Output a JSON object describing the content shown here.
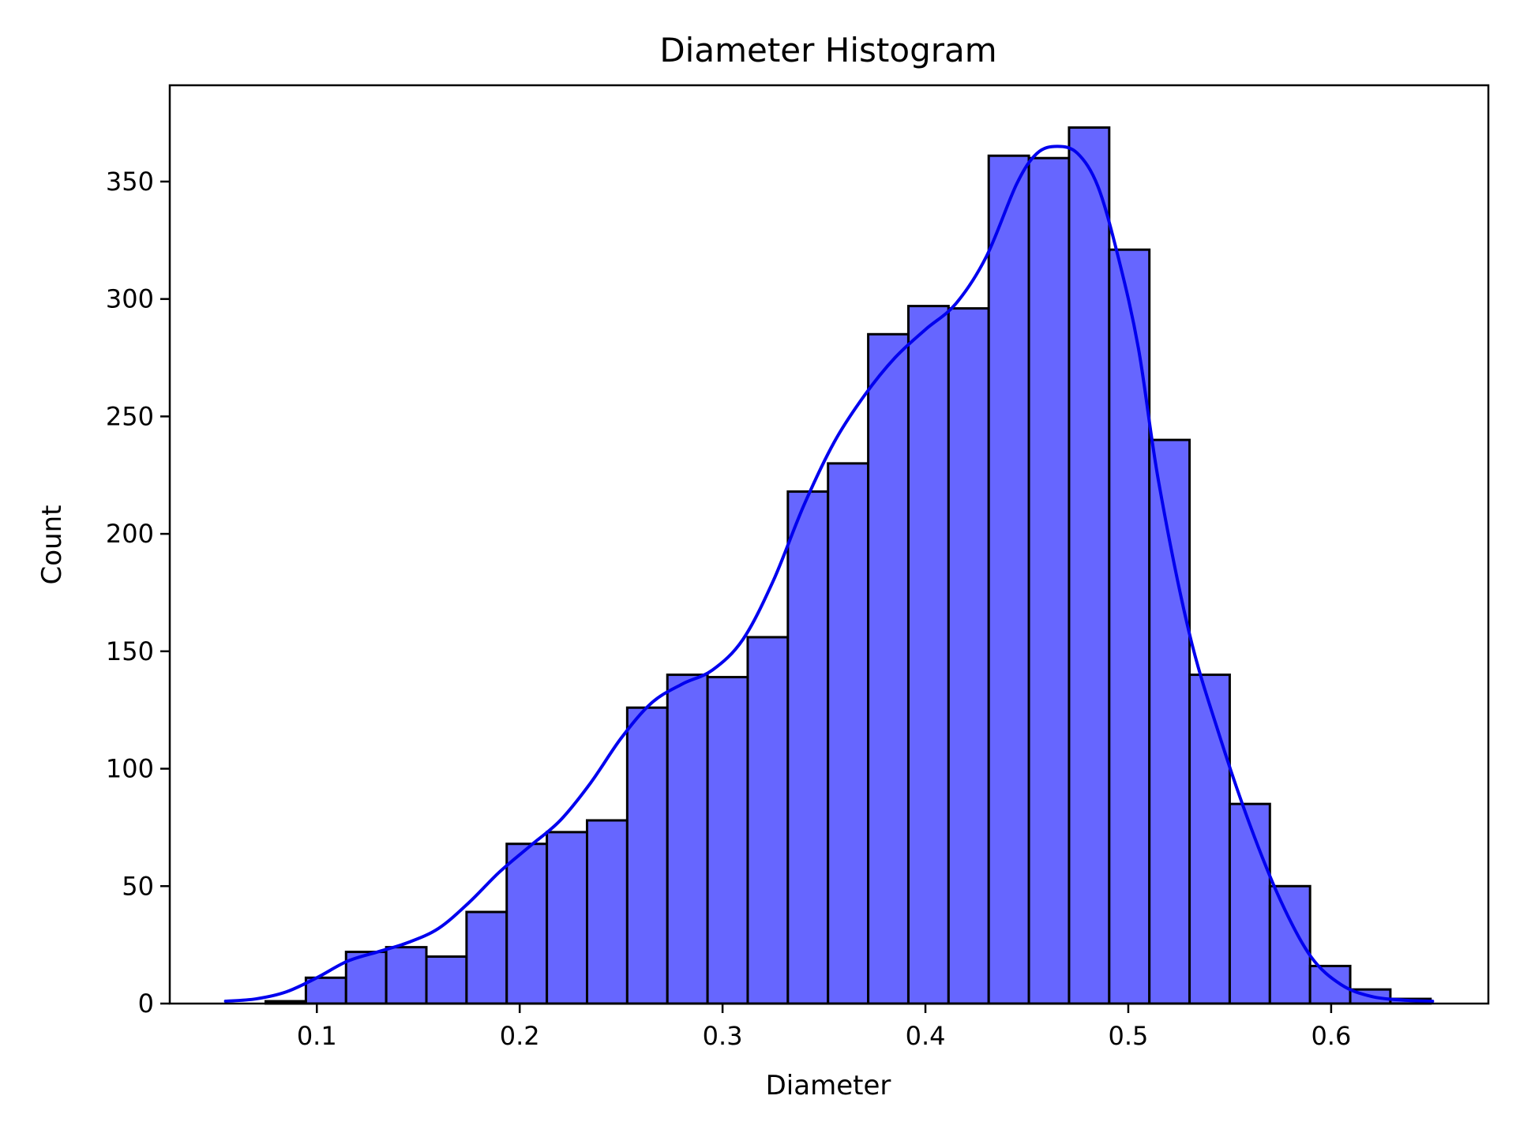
{
  "colors": {
    "bar_fill": "#6666ff",
    "bar_edge": "#000000",
    "kde_line": "#0000ee"
  },
  "chart_data": {
    "type": "bar",
    "title": "Diameter Histogram",
    "xlabel": "Diameter",
    "ylabel": "Count",
    "xlim": [
      0.0275,
      0.6775
    ],
    "ylim": [
      0,
      391
    ],
    "xticks": [
      0.1,
      0.2,
      0.3,
      0.4,
      0.5,
      0.6
    ],
    "xtick_labels": [
      "0.1",
      "0.2",
      "0.3",
      "0.4",
      "0.5",
      "0.6"
    ],
    "yticks": [
      0,
      50,
      100,
      150,
      200,
      250,
      300,
      350
    ],
    "ytick_labels": [
      "0",
      "50",
      "100",
      "150",
      "200",
      "250",
      "300",
      "350"
    ],
    "grid": false,
    "bins": {
      "start": 0.055,
      "width": 0.0198,
      "counts": [
        0,
        1,
        11,
        22,
        24,
        20,
        39,
        68,
        73,
        78,
        126,
        140,
        139,
        156,
        218,
        230,
        285,
        297,
        296,
        361,
        360,
        373,
        321,
        240,
        140,
        85,
        50,
        16,
        6,
        2
      ]
    },
    "kde": {
      "x": [
        0.055,
        0.07,
        0.085,
        0.1,
        0.115,
        0.13,
        0.145,
        0.16,
        0.175,
        0.19,
        0.205,
        0.22,
        0.235,
        0.25,
        0.265,
        0.28,
        0.295,
        0.31,
        0.325,
        0.34,
        0.355,
        0.37,
        0.385,
        0.4,
        0.415,
        0.43,
        0.445,
        0.455,
        0.465,
        0.475,
        0.485,
        0.495,
        0.505,
        0.515,
        0.53,
        0.545,
        0.56,
        0.575,
        0.59,
        0.605,
        0.62,
        0.635,
        0.65
      ],
      "y": [
        1,
        2,
        5,
        11,
        18,
        22,
        26,
        32,
        43,
        56,
        67,
        78,
        94,
        113,
        128,
        136,
        142,
        155,
        180,
        212,
        239,
        259,
        275,
        287,
        298,
        318,
        349,
        362,
        365,
        362,
        348,
        318,
        279,
        222,
        158,
        114,
        76,
        44,
        20,
        8,
        3,
        1.5,
        1
      ]
    }
  }
}
